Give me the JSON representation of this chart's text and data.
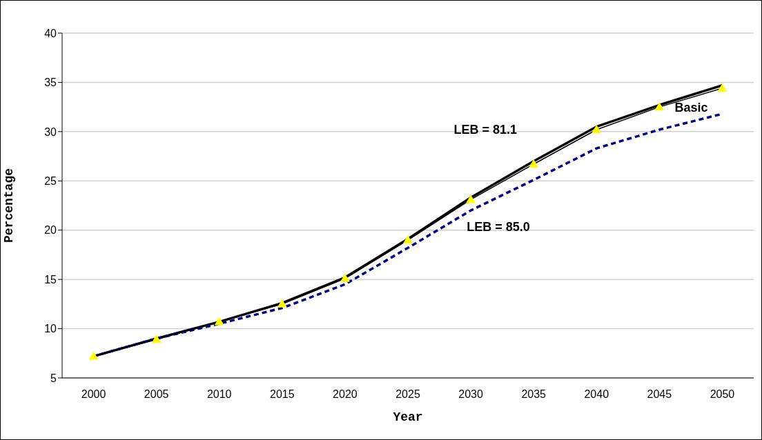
{
  "chart_data": {
    "type": "line",
    "xlabel": "Year",
    "ylabel": "Percentage",
    "categories": [
      "2000",
      "2005",
      "2010",
      "2015",
      "2020",
      "2025",
      "2030",
      "2035",
      "2040",
      "2045",
      "2050"
    ],
    "series": [
      {
        "name": "LEB = 81.1",
        "color": "#000000",
        "line_style": "solid",
        "marker": "none",
        "values": [
          7.2,
          9.0,
          10.7,
          12.6,
          15.2,
          19.1,
          23.3,
          27.0,
          30.5,
          32.7,
          34.7
        ]
      },
      {
        "name": "LEB = 85.0",
        "color": "#000080",
        "line_style": "dashed",
        "marker": "none",
        "values": [
          7.2,
          9.0,
          10.5,
          12.1,
          14.5,
          18.2,
          22.0,
          25.1,
          28.3,
          30.2,
          31.8
        ]
      },
      {
        "name": "Basic",
        "color": "#ffff00",
        "line_style": "solid",
        "marker": "triangle",
        "values": [
          7.2,
          8.9,
          10.7,
          12.5,
          15.1,
          19.0,
          23.1,
          26.7,
          30.2,
          32.5,
          34.4
        ]
      }
    ],
    "ylim": [
      5,
      40
    ],
    "yticks": [
      5,
      10,
      15,
      20,
      25,
      30,
      35,
      40
    ],
    "grid": "y",
    "legend": false
  }
}
